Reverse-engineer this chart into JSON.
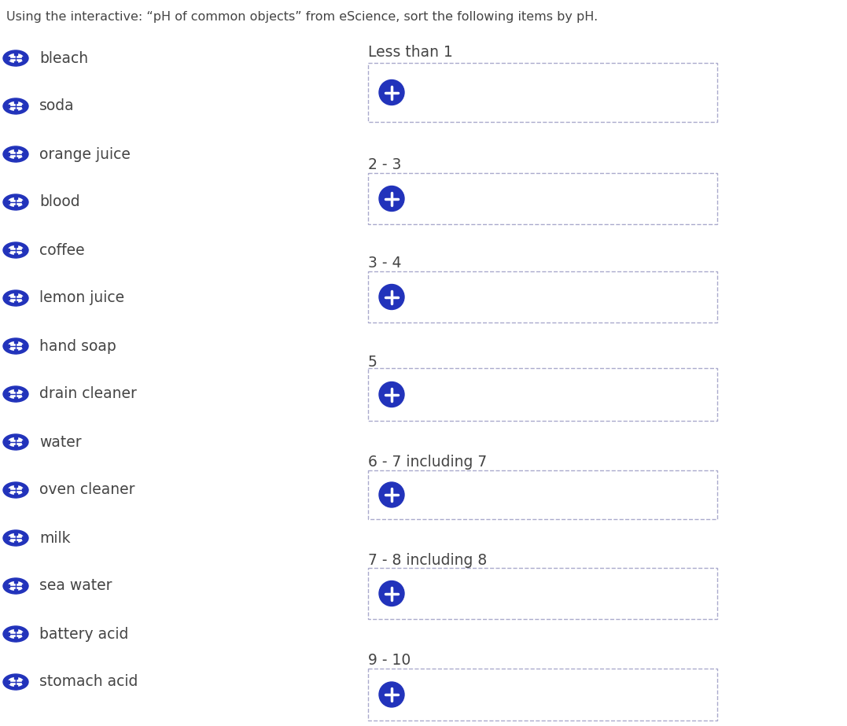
{
  "title_text": "Using the interactive: “pH of common objects” from eScience, sort the following items by pH.",
  "background_color": "#ffffff",
  "text_color": "#444444",
  "icon_color": "#2233bb",
  "items": [
    "bleach",
    "soda",
    "orange juice",
    "blood",
    "coffee",
    "lemon juice",
    "hand soap",
    "drain cleaner",
    "water",
    "oven cleaner",
    "milk",
    "sea water",
    "battery acid",
    "stomach acid"
  ],
  "categories": [
    "Less than 1",
    "2 - 3",
    "3 - 4",
    "5",
    "6 - 7 including 7",
    "7 - 8 including 8",
    "9 - 10"
  ],
  "box_border_color": "#aaaacc",
  "box_fill_color": "#ffffff",
  "plus_circle_color": "#2233bb",
  "plus_symbol_color": "#ffffff",
  "title_fontsize": 11.5,
  "item_fontsize": 13.5,
  "cat_fontsize": 13.5
}
